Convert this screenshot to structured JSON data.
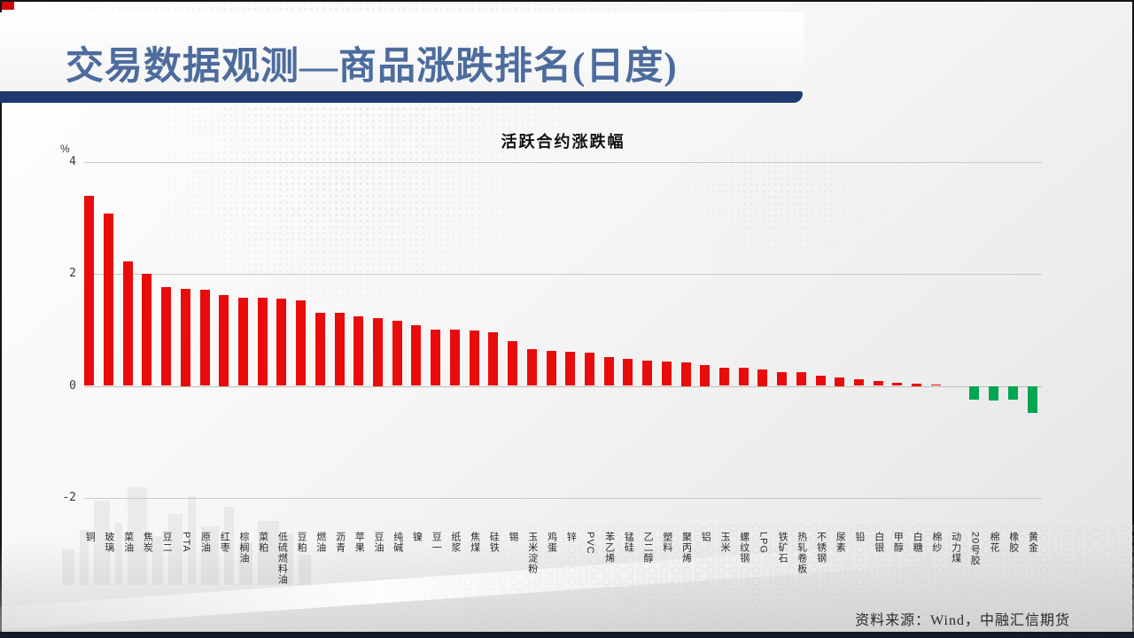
{
  "slide": {
    "title": "交易数据观测—商品涨跌排名(日度)",
    "source": "资料来源：Wind，中融汇信期货"
  },
  "chart_data": {
    "type": "bar",
    "title": "活跃合约涨跌幅",
    "ylabel": "%",
    "ylim": [
      -2,
      4
    ],
    "yticks": [
      4,
      2,
      0,
      -2
    ],
    "grid": true,
    "legend": "none",
    "positive_color": "#ea0b0b",
    "negative_color": "#00a651",
    "categories": [
      "铜",
      "玻璃",
      "菜油",
      "焦炭",
      "豆二",
      "PTA",
      "原油",
      "红枣",
      "棕榈油",
      "菜粕",
      "低硫燃料油",
      "豆粕",
      "燃油",
      "沥青",
      "苹果",
      "豆油",
      "纯碱",
      "镍",
      "豆一",
      "纸浆",
      "焦煤",
      "硅铁",
      "锡",
      "玉米淀粉",
      "鸡蛋",
      "锌",
      "PVC",
      "苯乙烯",
      "锰硅",
      "乙二醇",
      "塑料",
      "聚丙烯",
      "铝",
      "玉米",
      "螺纹钢",
      "LPG",
      "铁矿石",
      "热轧卷板",
      "不锈钢",
      "尿素",
      "铅",
      "白银",
      "甲醇",
      "白糖",
      "棉纱",
      "动力煤",
      "20号胶",
      "棉花",
      "橡胶",
      "黄金"
    ],
    "values": [
      3.39,
      3.08,
      2.22,
      2.0,
      1.76,
      1.74,
      1.72,
      1.63,
      1.58,
      1.58,
      1.56,
      1.53,
      1.31,
      1.3,
      1.24,
      1.21,
      1.17,
      1.08,
      1.01,
      1.0,
      0.99,
      0.96,
      0.8,
      0.65,
      0.62,
      0.61,
      0.6,
      0.52,
      0.48,
      0.45,
      0.44,
      0.42,
      0.38,
      0.33,
      0.32,
      0.3,
      0.25,
      0.24,
      0.18,
      0.15,
      0.12,
      0.09,
      0.06,
      0.04,
      0.03,
      0.0,
      -0.24,
      -0.25,
      -0.24,
      -0.48
    ]
  }
}
